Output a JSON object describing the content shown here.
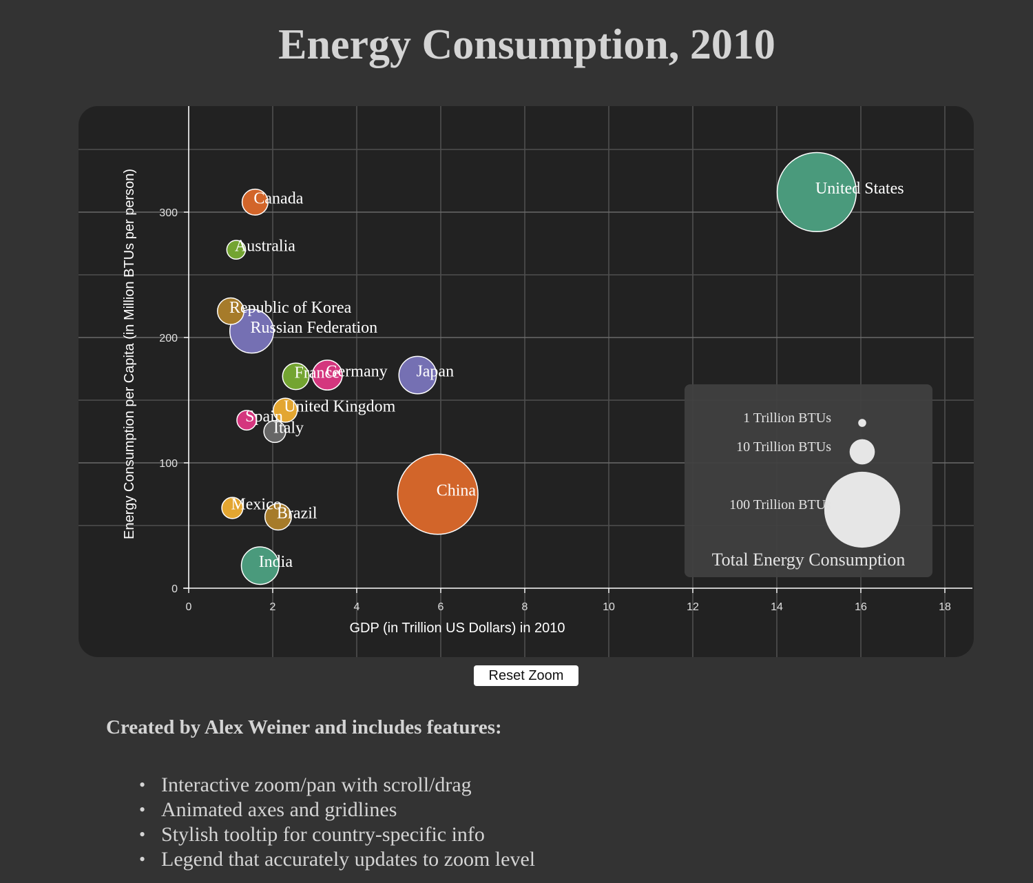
{
  "title": "Energy Consumption, 2010",
  "reset_button": "Reset Zoom",
  "credits": "Created by Alex Weiner and includes features:",
  "features": [
    "Interactive zoom/pan with scroll/drag",
    "Animated axes and gridlines",
    "Stylish tooltip for country-specific info",
    "Legend that accurately updates to zoom level"
  ],
  "chart_data": {
    "type": "scatter",
    "xlabel": "GDP (in Trillion US Dollars) in 2010",
    "ylabel": "Energy Consumption per Capita (in Million BTUs per person)",
    "xlim": [
      0,
      18
    ],
    "ylim": [
      0,
      350
    ],
    "xticks": [
      0,
      2,
      4,
      6,
      8,
      10,
      12,
      14,
      16,
      18
    ],
    "yticks": [
      0,
      100,
      200,
      300
    ],
    "grid": true,
    "points": [
      {
        "name": "United States",
        "x": 14.95,
        "y": 316,
        "size": 98,
        "color": "#4a9a7c"
      },
      {
        "name": "Canada",
        "x": 1.58,
        "y": 308,
        "size": 10.5,
        "color": "#d2652a"
      },
      {
        "name": "Australia",
        "x": 1.13,
        "y": 270,
        "size": 5.5,
        "color": "#73a431"
      },
      {
        "name": "Republic of Korea",
        "x": 1.0,
        "y": 221,
        "size": 11,
        "color": "#a67b2a"
      },
      {
        "name": "Russian Federation",
        "x": 1.5,
        "y": 205,
        "size": 30,
        "color": "#7570b3"
      },
      {
        "name": "France",
        "x": 2.55,
        "y": 169,
        "size": 11,
        "color": "#73a431"
      },
      {
        "name": "Germany",
        "x": 3.3,
        "y": 170,
        "size": 14,
        "color": "#d4367e"
      },
      {
        "name": "Japan",
        "x": 5.45,
        "y": 170,
        "size": 22,
        "color": "#7570b3"
      },
      {
        "name": "United Kingdom",
        "x": 2.3,
        "y": 142,
        "size": 9,
        "color": "#e3a631"
      },
      {
        "name": "Spain",
        "x": 1.38,
        "y": 134,
        "size": 6,
        "color": "#d4367e"
      },
      {
        "name": "Italy",
        "x": 2.05,
        "y": 125,
        "size": 7.5,
        "color": "#666666"
      },
      {
        "name": "China",
        "x": 5.93,
        "y": 75,
        "size": 101,
        "color": "#d2652a"
      },
      {
        "name": "Mexico",
        "x": 1.04,
        "y": 64,
        "size": 7,
        "color": "#e3a631"
      },
      {
        "name": "Brazil",
        "x": 2.13,
        "y": 57,
        "size": 11,
        "color": "#a67b2a"
      },
      {
        "name": "India",
        "x": 1.7,
        "y": 18,
        "size": 22,
        "color": "#4a9a7c"
      }
    ],
    "legend": {
      "title": "Total Energy Consumption",
      "placement": "bottom-right",
      "entries": [
        {
          "label": "1 Trillion BTUs",
          "size": 1
        },
        {
          "label": "10 Trillion BTUs",
          "size": 10
        },
        {
          "label": "100 Trillion BTUs",
          "size": 100
        }
      ]
    },
    "colors": {
      "background": "#333333",
      "plot_background": "#222222",
      "gridline": "#5e5e5e",
      "point_stroke": "#ffffff",
      "legend_bubble": "#e6e6e6"
    }
  }
}
